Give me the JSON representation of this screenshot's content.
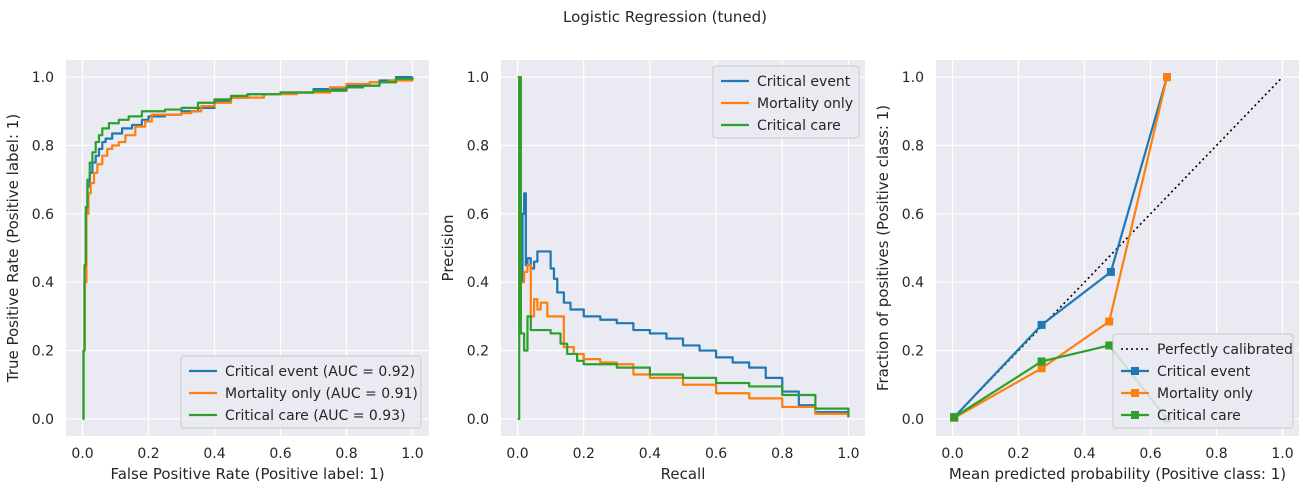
{
  "figure": {
    "title": "Logistic Regression (tuned)"
  },
  "colors": {
    "background": "#eaeaf2",
    "grid": "#ffffff",
    "blue": "#1f77b4",
    "orange": "#ff7f0e",
    "green": "#2ca02c",
    "reference": "#000000"
  },
  "chart_data": [
    {
      "type": "line",
      "subtype": "roc",
      "xlabel": "False Positive Rate (Positive label: 1)",
      "ylabel": "True Positive Rate (Positive label: 1)",
      "xlim": [
        -0.05,
        1.05
      ],
      "ylim": [
        -0.05,
        1.05
      ],
      "xticks": [
        0,
        0.2,
        0.4,
        0.6,
        0.8,
        1.0
      ],
      "xtick_labels": [
        "0.0",
        "0.2",
        "0.4",
        "0.6",
        "0.8",
        "1.0"
      ],
      "yticks": [
        0,
        0.2,
        0.4,
        0.6,
        0.8,
        1.0
      ],
      "yticklabels": [
        "0.0",
        "0.2",
        "0.4",
        "0.6",
        "0.8",
        "1.0"
      ],
      "grid": true,
      "legend": "lower-right",
      "series": [
        {
          "name": "Critical event (AUC = 0.92)",
          "color": "#1f77b4",
          "step": true,
          "points": [
            [
              0,
              0
            ],
            [
              0.003,
              0.2
            ],
            [
              0.006,
              0.4
            ],
            [
              0.01,
              0.6
            ],
            [
              0.015,
              0.68
            ],
            [
              0.022,
              0.72
            ],
            [
              0.03,
              0.75
            ],
            [
              0.04,
              0.77
            ],
            [
              0.05,
              0.79
            ],
            [
              0.06,
              0.81
            ],
            [
              0.07,
              0.82
            ],
            [
              0.09,
              0.835
            ],
            [
              0.12,
              0.85
            ],
            [
              0.15,
              0.86
            ],
            [
              0.18,
              0.875
            ],
            [
              0.2,
              0.885
            ],
            [
              0.25,
              0.89
            ],
            [
              0.3,
              0.9
            ],
            [
              0.35,
              0.91
            ],
            [
              0.4,
              0.93
            ],
            [
              0.45,
              0.94
            ],
            [
              0.5,
              0.95
            ],
            [
              0.6,
              0.955
            ],
            [
              0.7,
              0.965
            ],
            [
              0.8,
              0.975
            ],
            [
              0.9,
              0.99
            ],
            [
              0.95,
              1.0
            ],
            [
              1,
              1
            ]
          ]
        },
        {
          "name": "Mortality only (AUC = 0.91)",
          "color": "#ff7f0e",
          "step": true,
          "points": [
            [
              0,
              0
            ],
            [
              0.003,
              0.2
            ],
            [
              0.007,
              0.4
            ],
            [
              0.012,
              0.6
            ],
            [
              0.018,
              0.66
            ],
            [
              0.025,
              0.69
            ],
            [
              0.035,
              0.72
            ],
            [
              0.045,
              0.745
            ],
            [
              0.06,
              0.77
            ],
            [
              0.075,
              0.79
            ],
            [
              0.09,
              0.8
            ],
            [
              0.11,
              0.81
            ],
            [
              0.13,
              0.83
            ],
            [
              0.16,
              0.855
            ],
            [
              0.19,
              0.87
            ],
            [
              0.21,
              0.89
            ],
            [
              0.3,
              0.895
            ],
            [
              0.33,
              0.9
            ],
            [
              0.36,
              0.915
            ],
            [
              0.4,
              0.925
            ],
            [
              0.45,
              0.94
            ],
            [
              0.55,
              0.95
            ],
            [
              0.65,
              0.955
            ],
            [
              0.75,
              0.97
            ],
            [
              0.8,
              0.98
            ],
            [
              0.87,
              0.985
            ],
            [
              0.93,
              0.99
            ],
            [
              1,
              1
            ]
          ]
        },
        {
          "name": "Critical care (AUC = 0.93)",
          "color": "#2ca02c",
          "step": true,
          "points": [
            [
              0,
              0
            ],
            [
              0.003,
              0.2
            ],
            [
              0.006,
              0.45
            ],
            [
              0.01,
              0.62
            ],
            [
              0.015,
              0.7
            ],
            [
              0.022,
              0.75
            ],
            [
              0.03,
              0.78
            ],
            [
              0.04,
              0.81
            ],
            [
              0.05,
              0.83
            ],
            [
              0.06,
              0.85
            ],
            [
              0.08,
              0.865
            ],
            [
              0.11,
              0.875
            ],
            [
              0.14,
              0.885
            ],
            [
              0.18,
              0.9
            ],
            [
              0.25,
              0.905
            ],
            [
              0.3,
              0.91
            ],
            [
              0.35,
              0.925
            ],
            [
              0.4,
              0.935
            ],
            [
              0.45,
              0.945
            ],
            [
              0.5,
              0.95
            ],
            [
              0.6,
              0.955
            ],
            [
              0.7,
              0.96
            ],
            [
              0.8,
              0.97
            ],
            [
              0.85,
              0.975
            ],
            [
              0.9,
              0.985
            ],
            [
              0.95,
              0.995
            ],
            [
              1,
              1
            ]
          ]
        }
      ]
    },
    {
      "type": "line",
      "subtype": "precision-recall",
      "xlabel": "Recall",
      "ylabel": "Precision",
      "xlim": [
        -0.05,
        1.05
      ],
      "ylim": [
        -0.05,
        1.05
      ],
      "xticks": [
        0,
        0.2,
        0.4,
        0.6,
        0.8,
        1.0
      ],
      "xtick_labels": [
        "0.0",
        "0.2",
        "0.4",
        "0.6",
        "0.8",
        "1.0"
      ],
      "yticks": [
        0,
        0.2,
        0.4,
        0.6,
        0.8,
        1.0
      ],
      "yticklabels": [
        "0.0",
        "0.2",
        "0.4",
        "0.6",
        "0.8",
        "1.0"
      ],
      "grid": true,
      "legend": "upper-right",
      "series": [
        {
          "name": "Critical event",
          "color": "#1f77b4",
          "step": true,
          "points": [
            [
              0,
              1.0
            ],
            [
              0.005,
              0.3
            ],
            [
              0.01,
              0.4
            ],
            [
              0.015,
              0.6
            ],
            [
              0.02,
              0.66
            ],
            [
              0.025,
              0.45
            ],
            [
              0.03,
              0.47
            ],
            [
              0.04,
              0.44
            ],
            [
              0.05,
              0.46
            ],
            [
              0.06,
              0.49
            ],
            [
              0.09,
              0.49
            ],
            [
              0.1,
              0.44
            ],
            [
              0.11,
              0.41
            ],
            [
              0.12,
              0.37
            ],
            [
              0.14,
              0.34
            ],
            [
              0.16,
              0.32
            ],
            [
              0.2,
              0.3
            ],
            [
              0.25,
              0.29
            ],
            [
              0.3,
              0.28
            ],
            [
              0.35,
              0.26
            ],
            [
              0.4,
              0.25
            ],
            [
              0.45,
              0.235
            ],
            [
              0.5,
              0.215
            ],
            [
              0.55,
              0.2
            ],
            [
              0.6,
              0.18
            ],
            [
              0.65,
              0.165
            ],
            [
              0.7,
              0.15
            ],
            [
              0.75,
              0.12
            ],
            [
              0.8,
              0.08
            ],
            [
              0.85,
              0.04
            ],
            [
              0.9,
              0.02
            ],
            [
              1.0,
              0.006
            ]
          ]
        },
        {
          "name": "Mortality only",
          "color": "#ff7f0e",
          "step": true,
          "points": [
            [
              0,
              1.0
            ],
            [
              0.005,
              0.25
            ],
            [
              0.01,
              0.4
            ],
            [
              0.02,
              0.43
            ],
            [
              0.03,
              0.45
            ],
            [
              0.04,
              0.3
            ],
            [
              0.05,
              0.35
            ],
            [
              0.06,
              0.32
            ],
            [
              0.07,
              0.34
            ],
            [
              0.09,
              0.3
            ],
            [
              0.12,
              0.3
            ],
            [
              0.14,
              0.21
            ],
            [
              0.17,
              0.19
            ],
            [
              0.2,
              0.175
            ],
            [
              0.25,
              0.165
            ],
            [
              0.3,
              0.16
            ],
            [
              0.35,
              0.13
            ],
            [
              0.4,
              0.12
            ],
            [
              0.5,
              0.1
            ],
            [
              0.6,
              0.075
            ],
            [
              0.7,
              0.06
            ],
            [
              0.8,
              0.035
            ],
            [
              0.9,
              0.015
            ],
            [
              1.0,
              0.004
            ]
          ]
        },
        {
          "name": "Critical care",
          "color": "#2ca02c",
          "step": true,
          "points": [
            [
              0,
              0.0
            ],
            [
              0.005,
              1.0
            ],
            [
              0.01,
              0.25
            ],
            [
              0.02,
              0.2
            ],
            [
              0.03,
              0.3
            ],
            [
              0.04,
              0.26
            ],
            [
              0.08,
              0.26
            ],
            [
              0.1,
              0.25
            ],
            [
              0.13,
              0.22
            ],
            [
              0.15,
              0.19
            ],
            [
              0.18,
              0.17
            ],
            [
              0.2,
              0.16
            ],
            [
              0.3,
              0.15
            ],
            [
              0.4,
              0.13
            ],
            [
              0.5,
              0.12
            ],
            [
              0.6,
              0.105
            ],
            [
              0.7,
              0.095
            ],
            [
              0.8,
              0.07
            ],
            [
              0.9,
              0.03
            ],
            [
              1.0,
              0.005
            ]
          ]
        }
      ]
    },
    {
      "type": "line",
      "subtype": "calibration",
      "xlabel": "Mean predicted probability (Positive class: 1)",
      "ylabel": "Fraction of positives (Positive class: 1)",
      "xlim": [
        -0.05,
        1.05
      ],
      "ylim": [
        -0.05,
        1.05
      ],
      "xticks": [
        0,
        0.2,
        0.4,
        0.6,
        0.8,
        1.0
      ],
      "xtick_labels": [
        "0.0",
        "0.2",
        "0.4",
        "0.6",
        "0.8",
        "1.0"
      ],
      "yticks": [
        0,
        0.2,
        0.4,
        0.6,
        0.8,
        1.0
      ],
      "yticklabels": [
        "0.0",
        "0.2",
        "0.4",
        "0.6",
        "0.8",
        "1.0"
      ],
      "grid": true,
      "legend": "lower-right",
      "series": [
        {
          "name": "Perfectly calibrated",
          "color": "#000000",
          "dashed": true,
          "points": [
            [
              0,
              0
            ],
            [
              1,
              1
            ]
          ]
        },
        {
          "name": "Critical event",
          "color": "#1f77b4",
          "markers": true,
          "points": [
            [
              0.005,
              0.005
            ],
            [
              0.27,
              0.275
            ],
            [
              0.48,
              0.43
            ],
            [
              0.65,
              1.0
            ]
          ]
        },
        {
          "name": "Mortality only",
          "color": "#ff7f0e",
          "markers": true,
          "points": [
            [
              0.005,
              0.003
            ],
            [
              0.27,
              0.148
            ],
            [
              0.475,
              0.285
            ],
            [
              0.65,
              1.0
            ]
          ]
        },
        {
          "name": "Critical care",
          "color": "#2ca02c",
          "markers": true,
          "points": [
            [
              0.005,
              0.005
            ],
            [
              0.27,
              0.168
            ],
            [
              0.475,
              0.215
            ],
            [
              0.65,
              0.0
            ]
          ]
        }
      ]
    }
  ]
}
